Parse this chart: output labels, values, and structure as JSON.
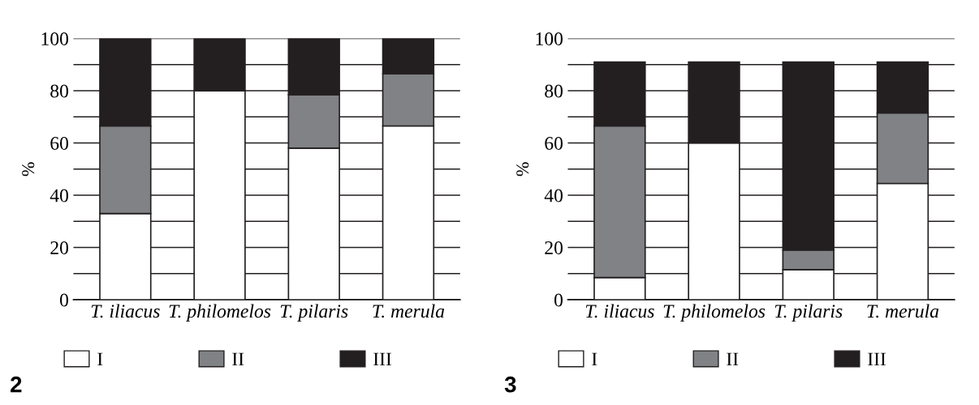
{
  "chart_data": [
    {
      "type": "bar",
      "stacked": true,
      "ylabel": "%",
      "annotations": [
        "2"
      ],
      "categories": [
        "T. iliacus",
        "T. philomelos",
        "T. pilaris",
        "T. merula"
      ],
      "series": [
        {
          "name": "I",
          "color": "#ffffff",
          "values": [
            33,
            80,
            58,
            66.5
          ]
        },
        {
          "name": "II",
          "color": "#808285",
          "values": [
            33.5,
            0,
            20.5,
            20
          ]
        },
        {
          "name": "III",
          "color": "#231f20",
          "values": [
            33.5,
            20,
            21.5,
            13.5
          ]
        }
      ],
      "ylim": [
        0,
        100
      ],
      "yticks": [
        0,
        {
          "value": 10,
          "label": null
        },
        20,
        {
          "value": 30,
          "label": null
        },
        40,
        {
          "value": 50,
          "label": null
        },
        60,
        {
          "value": 70,
          "label": null
        },
        80,
        {
          "value": 90,
          "label": null
        },
        100
      ],
      "grid": "y",
      "legend": "bottom"
    },
    {
      "type": "bar",
      "stacked": true,
      "ylabel": "%",
      "annotations": [
        "3"
      ],
      "categories": [
        "T. iliacus",
        "T. philomelos",
        "T. pilaris",
        "T. merula"
      ],
      "series": [
        {
          "name": "I",
          "color": "#ffffff",
          "values": [
            8.5,
            60,
            11.5,
            44.5
          ]
        },
        {
          "name": "II",
          "color": "#808285",
          "values": [
            58,
            0,
            7.5,
            27
          ]
        },
        {
          "name": "III",
          "color": "#231f20",
          "values": [
            24.5,
            31,
            72,
            19.5
          ]
        }
      ],
      "ylim": [
        0,
        100
      ],
      "yticks": [
        0,
        {
          "value": 10,
          "label": null
        },
        20,
        {
          "value": 30,
          "label": null
        },
        40,
        {
          "value": 50,
          "label": null
        },
        60,
        {
          "value": 70,
          "label": null
        },
        80,
        {
          "value": 90,
          "label": null
        },
        100
      ],
      "grid": "y",
      "legend": "bottom"
    }
  ]
}
